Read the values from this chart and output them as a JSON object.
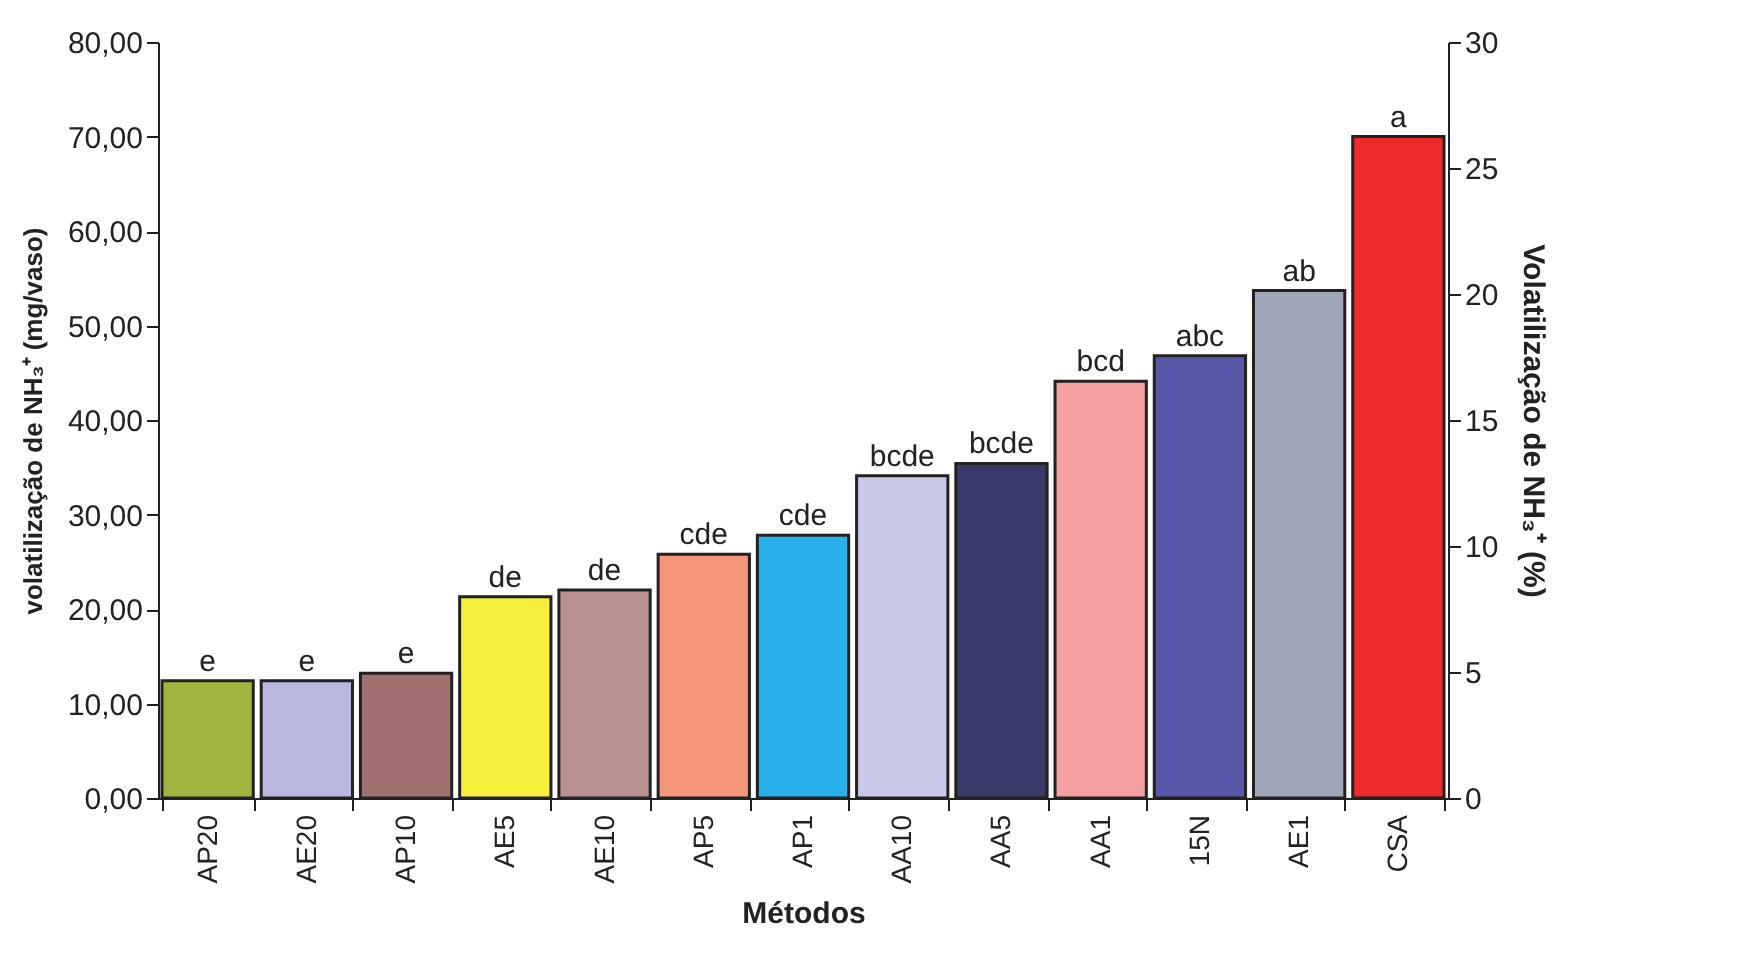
{
  "chart_data": {
    "type": "bar",
    "xlabel": "Métodos",
    "ylabel": "volatilização de NH₃⁺ (mg/vaso)",
    "y2label": "Volatilização de NH₃⁺  (%)",
    "categories": [
      "AP20",
      "AE20",
      "AP10",
      "AE5",
      "AE10",
      "AP5",
      "AP1",
      "AA10",
      "AA5",
      "AA1",
      "15N",
      "AE1",
      "CSA"
    ],
    "values": [
      12.4,
      12.4,
      13.2,
      21.3,
      22.0,
      25.8,
      27.8,
      34.1,
      35.4,
      44.1,
      46.8,
      53.7,
      70.0
    ],
    "colors": [
      "#a3b53f",
      "#b8b8e0",
      "#a07070",
      "#f5ee3a",
      "#b89090",
      "#f5957a",
      "#2ab0ea",
      "#c8c8e8",
      "#3a3a6a",
      "#f5a0a0",
      "#5858a8",
      "#a0a8b8",
      "#ee2b2b"
    ],
    "value_labels": [
      "e",
      "e",
      "e",
      "de",
      "de",
      "cde",
      "cde",
      "bcde",
      "bcde",
      "bcd",
      "abc",
      "ab",
      "a"
    ],
    "ylim": [
      0,
      80
    ],
    "yticks": [
      {
        "value": 0,
        "label": "0,00"
      },
      {
        "value": 10,
        "label": "10,00"
      },
      {
        "value": 20,
        "label": "20,00"
      },
      {
        "value": 30,
        "label": "30,00"
      },
      {
        "value": 40,
        "label": "40,00"
      },
      {
        "value": 50,
        "label": "50,00"
      },
      {
        "value": 60,
        "label": "60,00"
      },
      {
        "value": 70,
        "label": "70,00"
      },
      {
        "value": 80,
        "label": "80,00"
      }
    ],
    "y2lim": [
      0,
      30
    ],
    "y2ticks": [
      0,
      5,
      10,
      15,
      20,
      25,
      30
    ],
    "grid": false,
    "legend": false
  }
}
